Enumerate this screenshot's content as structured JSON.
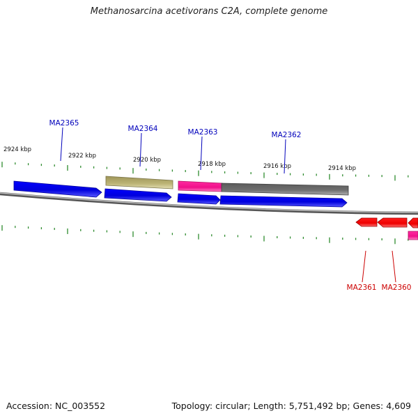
{
  "title": "Methanosarcina acetivorans C2A, complete genome",
  "footer": {
    "accession": "Accession: NC_003552",
    "summary": "Topology: circular; Length: 5,751,492 bp; Genes: 4,609"
  },
  "scale_labels": [
    "2924 kbp",
    "2922 kbp",
    "2920 kbp",
    "2918 kbp",
    "2916 kbp",
    "2914 kbp"
  ],
  "gene_labels": [
    {
      "name": "MA2365",
      "strand": "forward"
    },
    {
      "name": "MA2364",
      "strand": "forward"
    },
    {
      "name": "MA2363",
      "strand": "forward"
    },
    {
      "name": "MA2362",
      "strand": "forward"
    },
    {
      "name": "MA2361",
      "strand": "reverse"
    },
    {
      "name": "MA2360",
      "strand": "reverse"
    }
  ],
  "colors": {
    "cds_forward": "#0000e6",
    "cds_reverse": "#ff0000",
    "feature_khaki": "#b5ae72",
    "feature_pink": "#ff1493",
    "feature_gray": "#6e6e6e",
    "backbone": "#888888",
    "ticks": "#2e8b2e",
    "label_forward": "#0000bb",
    "label_reverse": "#cc0000"
  }
}
